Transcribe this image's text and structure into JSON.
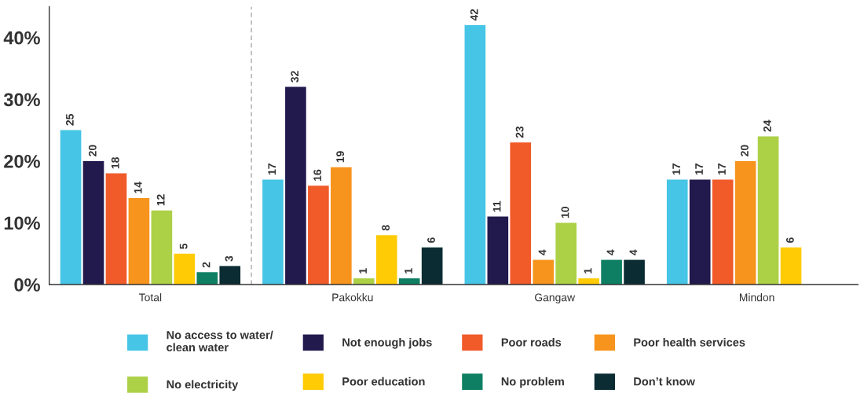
{
  "chart_data": {
    "type": "bar",
    "categories": [
      "Total",
      "Pakokku",
      "Gangaw",
      "Mindon"
    ],
    "series": [
      {
        "name": "No access to water/\nclean water",
        "color": "#46c5e6",
        "values": [
          25,
          17,
          42,
          17
        ]
      },
      {
        "name": "Not enough jobs",
        "color": "#22194d",
        "values": [
          20,
          32,
          11,
          17
        ]
      },
      {
        "name": "Poor roads",
        "color": "#f15a29",
        "values": [
          18,
          16,
          23,
          17
        ]
      },
      {
        "name": "Poor health services",
        "color": "#f7941d",
        "values": [
          14,
          19,
          4,
          20
        ]
      },
      {
        "name": "No electricity",
        "color": "#acd046",
        "values": [
          12,
          1,
          10,
          24
        ]
      },
      {
        "name": "Poor education",
        "color": "#ffcb05",
        "values": [
          5,
          8,
          1,
          6
        ]
      },
      {
        "name": "No problem",
        "color": "#0e7f62",
        "values": [
          2,
          1,
          4,
          null
        ]
      },
      {
        "name": "Don’t know",
        "color": "#0b2c33",
        "values": [
          3,
          6,
          4,
          null
        ]
      }
    ],
    "ylim": [
      0,
      45
    ],
    "yticks": [
      {
        "value": 0,
        "label": "0%"
      },
      {
        "value": 10,
        "label": "10%"
      },
      {
        "value": 20,
        "label": "20%"
      },
      {
        "value": 30,
        "label": "30%"
      },
      {
        "value": 40,
        "label": "40%"
      }
    ],
    "data_labels": true,
    "legend": "bottom"
  }
}
